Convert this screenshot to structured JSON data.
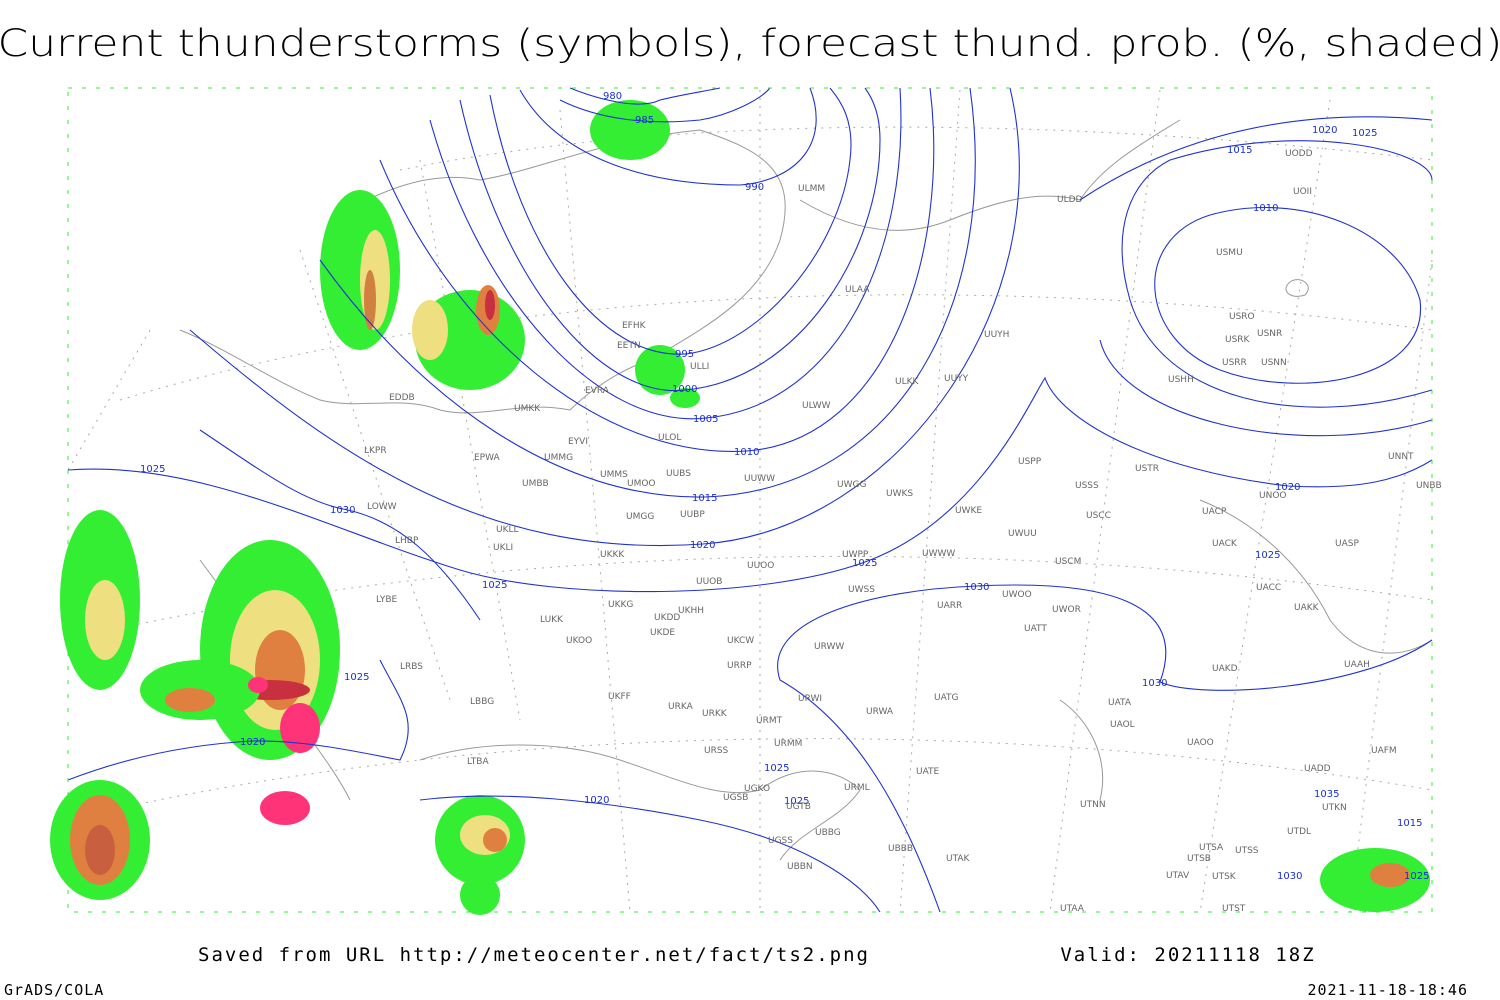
{
  "title": "Current thunderstorms (symbols), forecast thund. prob. (%, shaded)",
  "isobar_labels": [
    980,
    985,
    990,
    995,
    1000,
    1005,
    1010,
    1015,
    1020,
    1025,
    1030,
    1025,
    1030,
    1025,
    1025,
    1020,
    1020,
    1025,
    1025,
    1010,
    1015,
    1020,
    1025,
    1020,
    1025,
    1030,
    1035,
    1015,
    1025,
    1030
  ],
  "stations": [
    "EFHK",
    "EETN",
    "EVRA",
    "ULLI",
    "ULOL",
    "UMKK",
    "EYVI",
    "EPWA",
    "UMMG",
    "EDDB",
    "LKPR",
    "LOWW",
    "LHBP",
    "UMMS",
    "UMOO",
    "UUBS",
    "UMBB",
    "UKLL",
    "UKLI",
    "UMGG",
    "UUBP",
    "UKKK",
    "UUOO",
    "UUOB",
    "LUKK",
    "UKKG",
    "UKDD",
    "UKHH",
    "UKDE",
    "UKOO",
    "LRBS",
    "LYBE",
    "LBBG",
    "UKFF",
    "URKA",
    "URKK",
    "URWI",
    "URMT",
    "URMM",
    "URSS",
    "LTBA",
    "ULMM",
    "ULAA",
    "ULWW",
    "ULKK",
    "UUYY",
    "UUYH",
    "ULDD",
    "USPP",
    "USTR",
    "USSS",
    "USCC",
    "USCM",
    "UWUU",
    "UWKE",
    "UWKS",
    "UWWW",
    "UWPP",
    "UWSS",
    "URWA",
    "UATG",
    "UATA",
    "UAOL",
    "UAOO",
    "UACC",
    "UAKK",
    "UAAH",
    "UAKD",
    "UACK",
    "UACP",
    "UNOO",
    "UASP",
    "UNNT",
    "UNBB",
    "USHH",
    "USRR",
    "USNN",
    "USRK",
    "USNR",
    "USRO",
    "USMU",
    "UOII",
    "UODD",
    "UWOO",
    "UWOR",
    "UATT",
    "UARR",
    "UWGG",
    "URWW",
    "UUWW",
    "UKCW",
    "URRP",
    "UGSB",
    "UGKO",
    "UBBB",
    "UTAK",
    "UTAA",
    "UTNN",
    "UTSS",
    "UTSA",
    "UTSB",
    "UTAV",
    "UTSK",
    "UTST",
    "UTDL",
    "UTKN",
    "UADD",
    "UAFM",
    "UATE",
    "URML",
    "UGTB",
    "UGSS",
    "UBBG",
    "UBBN"
  ],
  "footer": {
    "source": "Saved from URL http://meteocenter.net/fact/ts2.png",
    "valid": "Valid: 20211118 18Z",
    "software": "GrADS/COLA",
    "timestamp": "2021-11-18-18:46"
  }
}
